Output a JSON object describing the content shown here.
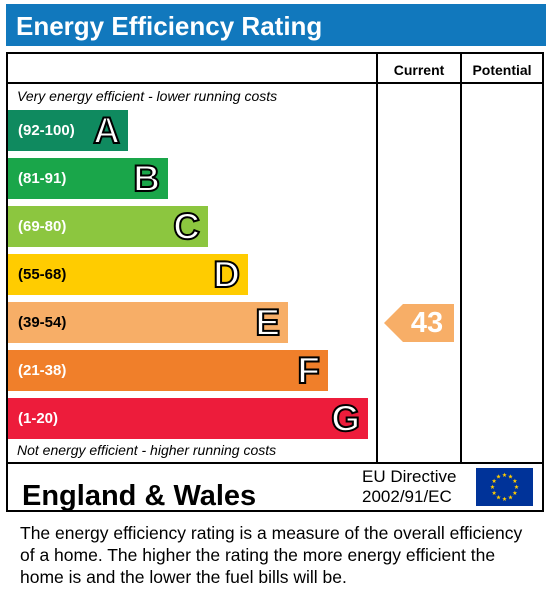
{
  "header": {
    "title": "Energy Efficiency Rating"
  },
  "table": {
    "current_label": "Current",
    "potential_label": "Potential",
    "top_note": "Very energy efficient - lower running costs",
    "bottom_note": "Not energy efficient - higher running costs"
  },
  "chart_data": {
    "type": "bar",
    "title": "Energy Efficiency Rating",
    "bands": [
      {
        "letter": "A",
        "range": "(92-100)",
        "color": "#0f8a5f"
      },
      {
        "letter": "B",
        "range": "(81-91)",
        "color": "#1aa64a"
      },
      {
        "letter": "C",
        "range": "(69-80)",
        "color": "#8cc63f"
      },
      {
        "letter": "D",
        "range": "(55-68)",
        "color": "#ffcc00"
      },
      {
        "letter": "E",
        "range": "(39-54)",
        "color": "#f7ae67"
      },
      {
        "letter": "F",
        "range": "(21-38)",
        "color": "#f07f2a"
      },
      {
        "letter": "G",
        "range": "(1-20)",
        "color": "#ed1c3b"
      }
    ],
    "current": {
      "value": "43",
      "band": "E",
      "color": "#f7ae67"
    },
    "potential": null
  },
  "footer": {
    "region": "England & Wales",
    "directive_line1": "EU Directive",
    "directive_line2": "2002/91/EC",
    "flag_icon": "eu-flag-icon"
  },
  "description": "The energy efficiency rating is a measure of the overall efficiency of a home.  The higher the rating the more energy efficient the home is and the lower the fuel bills will be."
}
